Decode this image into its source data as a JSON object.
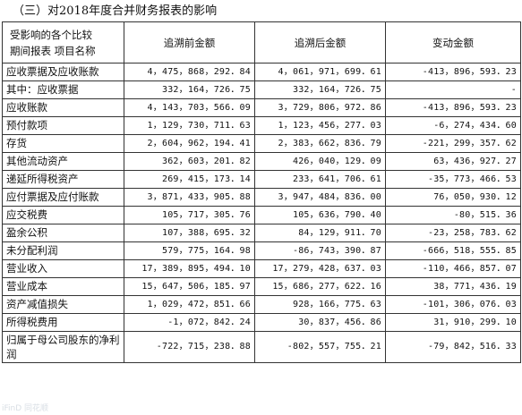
{
  "title": "（三）对2018年度合并财务报表的影响",
  "header": {
    "col0_line1": "受影响的各个比较",
    "col0_line2": "期间报表  项目名称",
    "col1": "追溯前金额",
    "col2": "追溯后金额",
    "col3": "变动金额"
  },
  "rows": [
    {
      "name": "应收票据及应收账款",
      "before": "4，475，868，292．84",
      "after": "4，061，971，699．61",
      "change": "-413，896，593．23"
    },
    {
      "name": "其中：应收票据",
      "before": "332，164，726．75",
      "after": "332，164，726．75",
      "change": "-"
    },
    {
      "name": "应收账款",
      "before": "4，143，703，566．09",
      "after": "3，729，806，972．86",
      "change": "-413，896，593．23"
    },
    {
      "name": "预付款项",
      "before": "1，129，730，711．63",
      "after": "1，123，456，277．03",
      "change": "-6，274，434．60"
    },
    {
      "name": "存货",
      "before": "2，604，962，194．41",
      "after": "2，383，662，836．79",
      "change": "-221，299，357．62"
    },
    {
      "name": "其他流动资产",
      "before": "362，603，201．82",
      "after": "426，040，129．09",
      "change": "63，436，927．27"
    },
    {
      "name": "递延所得税资产",
      "before": "269，415，173．14",
      "after": "233，641，706．61",
      "change": "-35，773，466．53"
    },
    {
      "name": "应付票据及应付账款",
      "before": "3，871，433，905．88",
      "after": "3，947，484，836．00",
      "change": "76，050，930．12"
    },
    {
      "name": "应交税费",
      "before": "105，717，305．76",
      "after": "105，636，790．40",
      "change": "-80，515．36"
    },
    {
      "name": "盈余公积",
      "before": "107，388，695．32",
      "after": "84，129，911．70",
      "change": "-23，258，783．62"
    },
    {
      "name": "未分配利润",
      "before": "579，775，164．98",
      "after": "-86，743，390．87",
      "change": "-666，518，555．85"
    },
    {
      "name": "营业收入",
      "before": "17，389，895，494．10",
      "after": "17，279，428，637．03",
      "change": "-110，466，857．07"
    },
    {
      "name": "营业成本",
      "before": "15，647，506，185．97",
      "after": "15，686，277，622．16",
      "change": "38，771，436．19"
    },
    {
      "name": "资产减值损失",
      "before": "1，029，472，851．66",
      "after": "928，166，775．63",
      "change": "-101，306，076．03"
    },
    {
      "name": "所得税费用",
      "before": "-1，072，842．24",
      "after": "30，837，456．86",
      "change": "31，910，299．10"
    },
    {
      "name": "归属于母公司股东的净利润",
      "before": "-722，715，238．88",
      "after": "-802，557，755．21",
      "change": "-79，842，516．33"
    }
  ],
  "watermark": "iFinD 同花顺"
}
